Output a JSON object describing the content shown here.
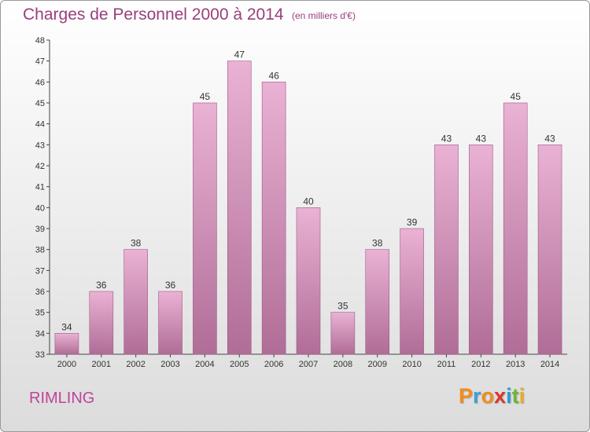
{
  "header": {
    "title": "Charges de Personnel 2000 à 2014",
    "subtitle": "(en milliers d'€)"
  },
  "footer": {
    "commune": "RIMLING",
    "logo_letters": [
      "P",
      "r",
      "o",
      "x",
      "i",
      "t",
      "i"
    ],
    "logo_colors": [
      "#f28c1e",
      "#3aa0d8",
      "#f28c1e",
      "#e0342a",
      "#2f9ad6",
      "#6cb83a",
      "#f2a81e"
    ]
  },
  "colors": {
    "bar_top": "#eab2d4",
    "bar_bottom": "#b06d97",
    "bar_edge": "#9c5a85",
    "text": "#333333",
    "accent": "#9a3e7a"
  },
  "chart_data": {
    "type": "bar",
    "categories": [
      "2000",
      "2001",
      "2002",
      "2003",
      "2004",
      "2005",
      "2006",
      "2007",
      "2008",
      "2009",
      "2010",
      "2011",
      "2012",
      "2013",
      "2014"
    ],
    "values": [
      34,
      36,
      38,
      36,
      45,
      47,
      46,
      40,
      35,
      38,
      39,
      43,
      43,
      45,
      43
    ],
    "ylim": [
      33,
      48
    ],
    "yticks": [
      33,
      34,
      35,
      36,
      37,
      38,
      39,
      40,
      41,
      42,
      43,
      44,
      45,
      46,
      47,
      48
    ],
    "title": "Charges de Personnel 2000 à 2014",
    "xlabel": "",
    "ylabel": "",
    "grid": false,
    "legend": "none"
  }
}
